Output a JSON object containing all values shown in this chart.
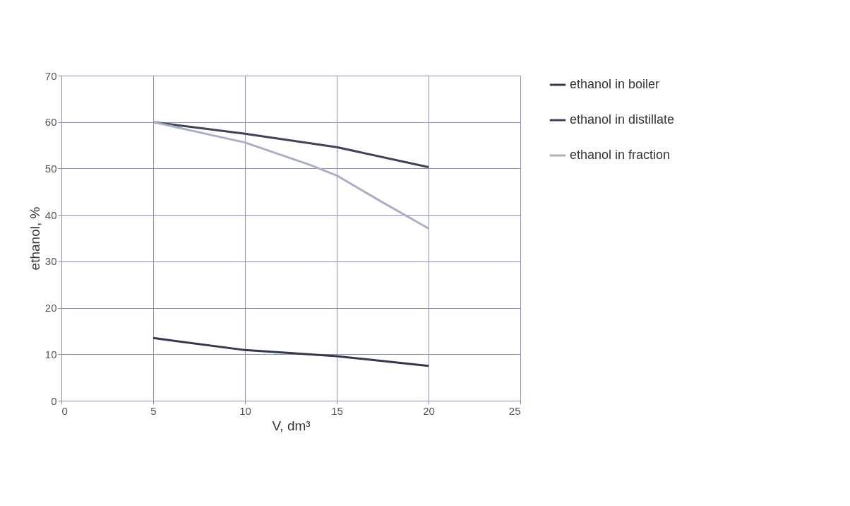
{
  "chart_data": {
    "type": "line",
    "xlabel": "V, dm³",
    "ylabel": "ethanol, %",
    "xlim": [
      0,
      25
    ],
    "xticks": [
      0,
      5,
      10,
      15,
      20,
      25
    ],
    "ylim": [
      0,
      70
    ],
    "yticks": [
      0,
      10,
      20,
      30,
      40,
      50,
      60,
      70
    ],
    "grid": true,
    "legend": "right",
    "marker": "none",
    "line_style": "solid",
    "series": [
      {
        "name": "ethanol in boiler",
        "color": "#34384f",
        "x": [
          5,
          10,
          15,
          20
        ],
        "values": [
          13.5,
          10.9,
          9.6,
          7.5
        ]
      },
      {
        "name": "ethanol in distillate",
        "color": "#3e425a",
        "x": [
          5,
          10,
          15,
          20
        ],
        "values": [
          60,
          57.5,
          54.6,
          50.3
        ]
      },
      {
        "name": "ethanol in fraction",
        "color": "#a9b0c6",
        "x": [
          5,
          10,
          13.6,
          15,
          17.5,
          20
        ],
        "values": [
          60,
          55.6,
          50.7,
          48.5,
          42.7,
          37.1
        ]
      }
    ]
  }
}
